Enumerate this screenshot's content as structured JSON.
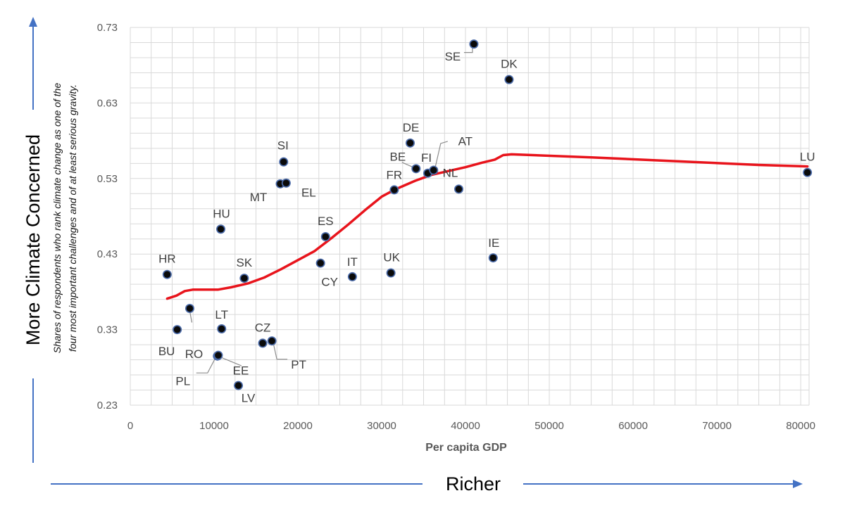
{
  "chart_data": {
    "type": "scatter",
    "xlabel": "Per capita GDP",
    "ylabel_lines": [
      "Shares of respondents who rank climate change as one of the",
      "four most important challenges and of at least serious gravity."
    ],
    "x_ticks": [
      "0",
      "10000",
      "20000",
      "30000",
      "40000",
      "50000",
      "60000",
      "70000",
      "80000"
    ],
    "y_ticks": [
      "0.23",
      "0.33",
      "0.43",
      "0.53",
      "0.63",
      "0.73"
    ],
    "xlim": [
      0,
      81000
    ],
    "ylim": [
      0.23,
      0.73
    ],
    "grid": true,
    "points": [
      {
        "label": "HR",
        "x": 4400,
        "y": 0.403
      },
      {
        "label": "BU",
        "x": 5600,
        "y": 0.33
      },
      {
        "label": "RO",
        "x": 7100,
        "y": 0.358
      },
      {
        "label": "PL",
        "x": 10400,
        "y": 0.295
      },
      {
        "label": "EE",
        "x": 10500,
        "y": 0.296
      },
      {
        "label": "HU",
        "x": 10800,
        "y": 0.463
      },
      {
        "label": "LT",
        "x": 10900,
        "y": 0.331
      },
      {
        "label": "LV",
        "x": 12900,
        "y": 0.256
      },
      {
        "label": "SK",
        "x": 13600,
        "y": 0.398
      },
      {
        "label": "CZ",
        "x": 15800,
        "y": 0.312
      },
      {
        "label": "PT",
        "x": 16900,
        "y": 0.315
      },
      {
        "label": "MT",
        "x": 17900,
        "y": 0.523
      },
      {
        "label": "SI",
        "x": 18300,
        "y": 0.552
      },
      {
        "label": "EL",
        "x": 18600,
        "y": 0.524
      },
      {
        "label": "CY",
        "x": 22700,
        "y": 0.418
      },
      {
        "label": "ES",
        "x": 23300,
        "y": 0.453
      },
      {
        "label": "IT",
        "x": 26500,
        "y": 0.4
      },
      {
        "label": "UK",
        "x": 31100,
        "y": 0.405
      },
      {
        "label": "FR",
        "x": 31500,
        "y": 0.515
      },
      {
        "label": "DE",
        "x": 33400,
        "y": 0.577
      },
      {
        "label": "BE",
        "x": 34100,
        "y": 0.543
      },
      {
        "label": "FI",
        "x": 35500,
        "y": 0.537
      },
      {
        "label": "AT",
        "x": 36200,
        "y": 0.541
      },
      {
        "label": "NL",
        "x": 39200,
        "y": 0.516
      },
      {
        "label": "SE",
        "x": 41000,
        "y": 0.708
      },
      {
        "label": "IE",
        "x": 43300,
        "y": 0.425
      },
      {
        "label": "DK",
        "x": 45200,
        "y": 0.661
      },
      {
        "label": "LU",
        "x": 80800,
        "y": 0.538
      }
    ],
    "trend": {
      "x": [
        4400,
        5500,
        6500,
        7500,
        9000,
        10500,
        12000,
        14000,
        16000,
        18000,
        20000,
        22000,
        24000,
        26000,
        28000,
        30000,
        31500,
        34000,
        36000,
        38000,
        40000,
        42000,
        43500,
        44500,
        45500,
        55000,
        65000,
        75000,
        80800
      ],
      "y": [
        0.371,
        0.375,
        0.381,
        0.383,
        0.383,
        0.383,
        0.386,
        0.391,
        0.399,
        0.41,
        0.422,
        0.434,
        0.451,
        0.469,
        0.488,
        0.506,
        0.515,
        0.527,
        0.535,
        0.54,
        0.545,
        0.551,
        0.555,
        0.561,
        0.562,
        0.558,
        0.553,
        0.548,
        0.546
      ]
    }
  },
  "annotations": {
    "left_arrow_label": "More Climate Concerned",
    "bottom_arrow_label": "Richer"
  },
  "colors": {
    "trend": "#e8141c",
    "point_fill": "#0a0a0a",
    "point_ring": "#4a6aa8",
    "grid": "#d9d9d9",
    "arrow": "#4472c4"
  }
}
